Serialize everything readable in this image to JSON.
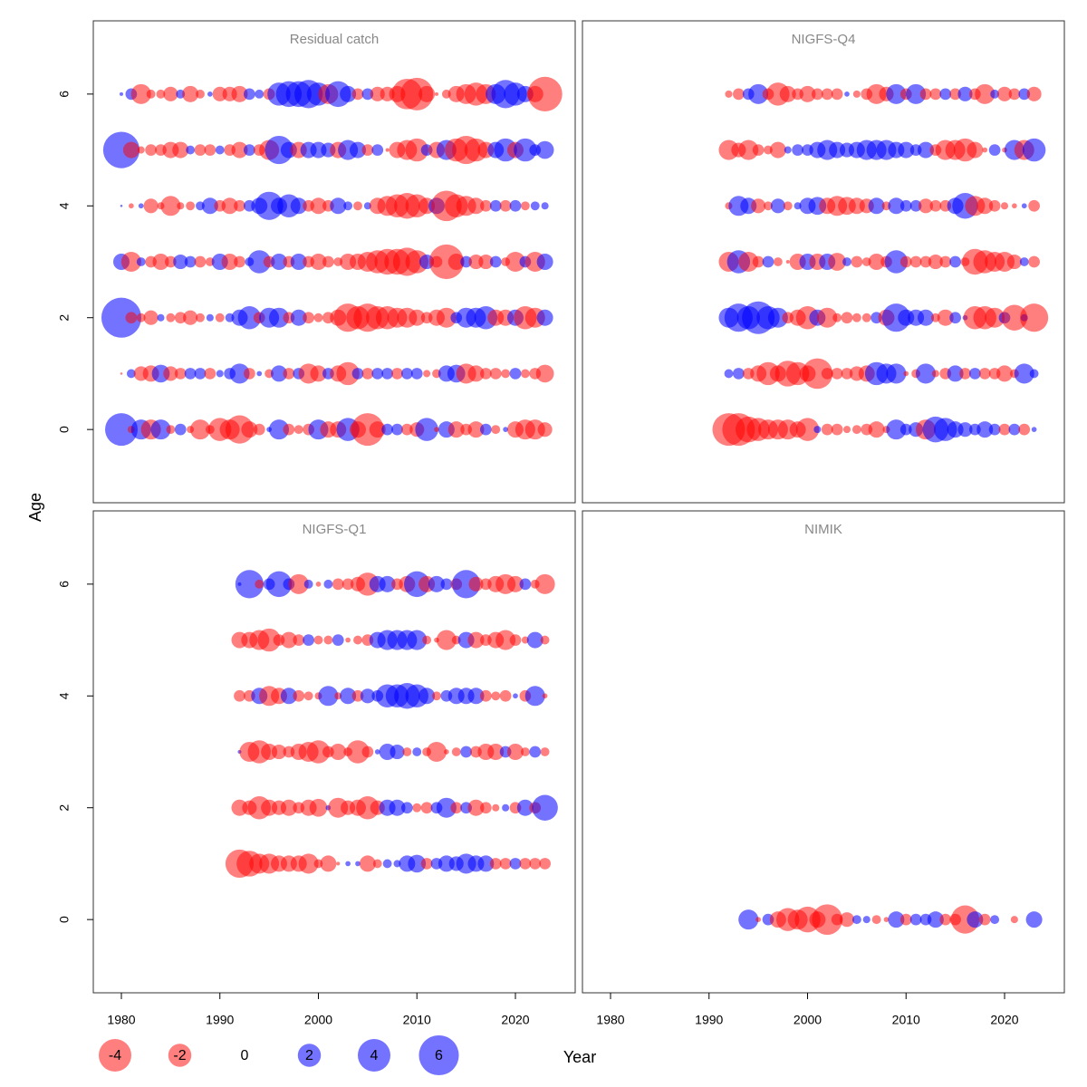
{
  "chart_data": {
    "type": "bubble",
    "xlabel": "Year",
    "ylabel": "Age",
    "xlim": [
      1977.15,
      2026.07
    ],
    "ylim": [
      -1.31,
      7.31
    ],
    "xticks": [
      1980,
      1990,
      2000,
      2010,
      2020
    ],
    "yticks": [
      0,
      2,
      4,
      6
    ],
    "positive_color": "rgba(0,0,255,0.55)",
    "negative_color": "rgba(255,0,0,0.5)",
    "size_legend": [
      -4,
      -2,
      0,
      2,
      4,
      6
    ],
    "panels": [
      {
        "title": "Residual catch",
        "years": [
          1980,
          1981,
          1982,
          1983,
          1984,
          1985,
          1986,
          1987,
          1988,
          1989,
          1990,
          1991,
          1992,
          1993,
          1994,
          1995,
          1996,
          1997,
          1998,
          1999,
          2000,
          2001,
          2002,
          2003,
          2004,
          2005,
          2006,
          2007,
          2008,
          2009,
          2010,
          2011,
          2012,
          2013,
          2014,
          2015,
          2016,
          2017,
          2018,
          2019,
          2020,
          2021,
          2022,
          2023
        ],
        "ages": [
          0,
          1,
          2,
          3,
          4,
          5,
          6
        ],
        "residuals": [
          [
            4,
            -0.2,
            1.5,
            -1.5,
            1.5,
            -0.3,
            0.5,
            -0.2,
            -1.5,
            -0.3,
            -2,
            -1.5,
            -3,
            -1,
            -0.5,
            0.1,
            1.5,
            -0.5,
            -0.3,
            -0.5,
            1.5,
            -1,
            -1,
            2,
            -1,
            -4,
            -1,
            0.5,
            0.5,
            -0.5,
            -0.8,
            2,
            -0.1,
            1,
            -1,
            -0.5,
            -1,
            0.5,
            -0.3,
            0.1,
            -1,
            -1.5,
            -1.5,
            -0.8
          ],
          [
            -0.02,
            0.3,
            -0.8,
            -1,
            1.2,
            -0.8,
            -0.5,
            0.5,
            0.5,
            -0.5,
            0.2,
            0.5,
            1.5,
            -0.5,
            0.1,
            -0.3,
            1,
            -0.5,
            0.5,
            -1.5,
            -1,
            0.5,
            -1,
            -2,
            0.5,
            -0.5,
            0.5,
            0.5,
            -0.5,
            0.5,
            0.5,
            -0.2,
            -0.3,
            1,
            1.2,
            -1.5,
            -1,
            -0.5,
            -0.5,
            -0.3,
            0.5,
            -0.3,
            -0.5,
            -1.2
          ],
          [
            6,
            -0.5,
            -0.3,
            -0.8,
            0.2,
            -0.3,
            -0.5,
            -0.8,
            -0.3,
            0.2,
            -0.3,
            0.3,
            1,
            2,
            -0.5,
            1.5,
            1.5,
            -0.5,
            1,
            -0.5,
            -0.3,
            -0.5,
            -1,
            -3,
            -2,
            -3,
            -2,
            -2,
            -1.5,
            -1.5,
            -1,
            -0.5,
            -1,
            -1.5,
            0.5,
            1.5,
            1.5,
            2,
            -1,
            -1,
            1,
            -2,
            -1.5,
            1
          ],
          [
            1,
            -1.5,
            0.3,
            -0.5,
            -1,
            -0.5,
            0.8,
            0.5,
            -0.5,
            -0.3,
            1,
            -1,
            -0.5,
            0.3,
            2,
            -0.5,
            1,
            -0.5,
            1,
            -0.5,
            -1,
            -0.5,
            -0.3,
            -1,
            -1,
            -1.5,
            -2,
            -2.5,
            -2.5,
            -3,
            -2,
            0.8,
            -0.5,
            -4.5,
            -1,
            0.5,
            -0.8,
            -0.8,
            0.5,
            -0.3,
            -1.5,
            0.5,
            -1.5,
            1
          ],
          [
            0.02,
            -0.1,
            0.1,
            -0.8,
            -0.2,
            -1.5,
            -0.2,
            -0.3,
            0.3,
            1,
            -0.5,
            -1,
            -0.5,
            0.5,
            1,
            3,
            1,
            2,
            1,
            -0.5,
            -1,
            -0.5,
            1,
            0.3,
            -0.3,
            0.2,
            -1,
            -1.5,
            -2,
            -2.5,
            -2,
            -1,
            1,
            -3.5,
            -2,
            -1.5,
            -1,
            -0.5,
            0.5,
            -0.5,
            0.5,
            -0.3,
            0.3,
            0.2
          ],
          [
            5,
            -1,
            -0.2,
            -0.5,
            -0.5,
            -1,
            -1,
            0.3,
            -0.5,
            -0.5,
            0.3,
            -0.5,
            -1,
            0.5,
            -0.5,
            -1.5,
            3,
            1,
            -1,
            1,
            1,
            0.8,
            -1,
            1.5,
            1,
            -0.5,
            0.5,
            -0.05,
            -1,
            -1.5,
            -2,
            0.5,
            -1,
            1.5,
            -2,
            -3,
            -2,
            -1,
            1,
            2,
            -1,
            2,
            0.5,
            1.2
          ],
          [
            0.05,
            0.5,
            -1.5,
            -0.3,
            -0.3,
            -0.8,
            0.3,
            -1,
            -0.3,
            0.1,
            -0.8,
            -0.8,
            -1,
            0.5,
            0.3,
            -0.5,
            2,
            2.5,
            2.5,
            3,
            2,
            -1.5,
            2.5,
            1,
            -0.5,
            0.5,
            -0.8,
            -0.8,
            -1,
            -3.5,
            -4,
            -1,
            -0.05,
            -0.3,
            -1,
            -1.5,
            -2,
            -1.5,
            1.5,
            3,
            2,
            1,
            -1,
            -4.5
          ]
        ]
      },
      {
        "title": "NIGFS-Q4",
        "years": [
          1992,
          1993,
          1994,
          1995,
          1996,
          1997,
          1998,
          1999,
          2000,
          2001,
          2002,
          2003,
          2004,
          2005,
          2006,
          2007,
          2008,
          2009,
          2010,
          2011,
          2012,
          2013,
          2014,
          2015,
          2016,
          2017,
          2018,
          2019,
          2020,
          2021,
          2022,
          2023
        ],
        "ages": [
          0,
          1,
          2,
          3,
          4,
          5,
          6
        ],
        "residuals": [
          [
            -4,
            -4,
            -2.5,
            -2,
            -1.5,
            -1.5,
            -1.5,
            -1,
            -2,
            0.2,
            -0.5,
            -0.5,
            -0.2,
            -0.3,
            -0.5,
            -1,
            -0.2,
            1.5,
            0.5,
            0.8,
            -1.5,
            2.5,
            2,
            1,
            0.8,
            0.5,
            1,
            0.5,
            -0.5,
            0.5,
            -0.5,
            0.1
          ],
          [
            0.3,
            0.5,
            -0.5,
            -1,
            -2,
            -1,
            -2.5,
            -2,
            -1,
            -3.5,
            -0.5,
            -0.5,
            -0.5,
            -0.8,
            -1,
            2,
            1.5,
            1.5,
            -0.1,
            -0.3,
            1.5,
            -0.2,
            -0.5,
            1,
            -0.5,
            0.5,
            -0.5,
            -0.5,
            -1,
            -0.3,
            1.5,
            0.3
          ],
          [
            1.5,
            3,
            2,
            4,
            2,
            1.5,
            -0.5,
            -1,
            -2,
            1,
            -1.5,
            -0.3,
            -0.5,
            -0.3,
            -0.3,
            0.5,
            -1,
            3,
            1,
            1,
            1,
            -0.3,
            -1,
            0.5,
            0.1,
            -2,
            -2,
            -1.5,
            0.5,
            -2.5,
            0.2,
            -3
          ],
          [
            -1.5,
            2,
            -1.5,
            -0.5,
            0.5,
            -0.3,
            -0.05,
            -1,
            1,
            -1,
            1,
            -1.2,
            0.3,
            -0.5,
            -0.3,
            -1,
            -0.5,
            2,
            -0.5,
            -0.5,
            -0.5,
            -0.8,
            -0.5,
            0.5,
            -0.3,
            -2.5,
            -2,
            -1.5,
            -1.5,
            -0.8,
            0.3,
            -0.5
          ],
          [
            -0.2,
            1.5,
            1,
            -0.8,
            -0.3,
            0.8,
            -0.3,
            0.2,
            1,
            1.2,
            -1,
            -1.5,
            -1.2,
            -1,
            -0.8,
            1,
            -0.3,
            1,
            0.5,
            0.5,
            -0.8,
            -0.5,
            -0.5,
            1,
            2.5,
            -1.5,
            -1,
            -0.5,
            -0.2,
            -0.1,
            0.1,
            -0.5
          ],
          [
            -1.5,
            -0.8,
            -1.5,
            -0.5,
            -0.3,
            -1,
            0.2,
            0.5,
            0.5,
            1,
            1.5,
            1,
            0.8,
            1,
            1.5,
            1.5,
            1.5,
            1,
            1,
            0.5,
            1,
            -0.5,
            -1.5,
            -1.5,
            -2,
            -1,
            -0.1,
            0.5,
            -0.1,
            1.5,
            -1.5,
            2
          ],
          [
            -0.2,
            -0.5,
            0.5,
            1.5,
            -0.5,
            -2,
            -1,
            -0.5,
            -1,
            -0.5,
            -0.5,
            -0.5,
            0.1,
            -0.2,
            -0.5,
            -1.5,
            -0.8,
            1.5,
            -0.5,
            1.5,
            -0.5,
            -0.5,
            0.5,
            -0.5,
            0.8,
            -0.5,
            -1.5,
            0.3,
            -0.8,
            -0.5,
            0.5,
            -0.8
          ]
        ]
      },
      {
        "title": "NIGFS-Q1",
        "years": [
          1992,
          1993,
          1994,
          1995,
          1996,
          1997,
          1998,
          1999,
          2000,
          2001,
          2002,
          2003,
          2004,
          2005,
          2006,
          2007,
          2008,
          2009,
          2010,
          2011,
          2012,
          2013,
          2014,
          2015,
          2016,
          2017,
          2018,
          2019,
          2020,
          2021,
          2022,
          2023
        ],
        "ages": [
          1,
          2,
          3,
          4,
          5,
          6
        ],
        "residuals": [
          [
            -3,
            -2.5,
            -1.5,
            -1.5,
            -1,
            -1,
            -1,
            -1.5,
            -0.3,
            -1,
            -0.05,
            0.1,
            0.1,
            -1,
            -0.3,
            0.3,
            0.2,
            1,
            1.2,
            -0.5,
            0.5,
            1,
            0.8,
            1.5,
            1,
            1,
            -0.5,
            -0.5,
            0.5,
            -0.5,
            -0.5,
            -0.5
          ],
          [
            -1,
            -0.8,
            -2,
            -1,
            -0.8,
            -1,
            -0.5,
            -1,
            -1.2,
            0.1,
            -1.5,
            -0.8,
            -1,
            -2,
            -0.8,
            1,
            1,
            0.5,
            -0.3,
            -0.5,
            0.5,
            1.5,
            -0.5,
            0.5,
            -1,
            -0.5,
            -0.2,
            0.2,
            -0.5,
            1,
            -0.5,
            2.5
          ],
          [
            0.05,
            -1.5,
            -2,
            -1,
            -0.8,
            -0.5,
            -1,
            -1.5,
            -2,
            -0.5,
            -1,
            -0.3,
            -2,
            -0.5,
            0.1,
            1,
            0.8,
            -0.3,
            0.3,
            -0.3,
            -1.5,
            -0.1,
            -0.3,
            0.5,
            -0.5,
            -1,
            -1,
            0.5,
            -1,
            -0.3,
            0.5,
            -0.3
          ],
          [
            -0.5,
            -0.5,
            1,
            -1.5,
            -1,
            1,
            -0.5,
            -0.3,
            -0.2,
            1.5,
            -0.2,
            1,
            -0.5,
            0.8,
            0.5,
            2,
            2,
            2.5,
            2,
            1,
            -0.3,
            0.5,
            1,
            1,
            1,
            -0.5,
            -0.3,
            -0.5,
            0.1,
            -0.5,
            1.5,
            -0.1
          ],
          [
            -1,
            -1,
            -1.5,
            -2,
            -0.5,
            -1,
            -0.5,
            0.5,
            -0.3,
            -0.3,
            0.5,
            -0.1,
            -0.3,
            -0.5,
            1,
            1.5,
            1.5,
            1.5,
            1.5,
            -0.3,
            -0.1,
            -1.5,
            -0.3,
            1,
            -1,
            -0.5,
            -1,
            -1.5,
            -0.5,
            -0.2,
            1,
            -0.3
          ],
          [
            0.05,
            3,
            -0.3,
            0.5,
            2.5,
            0.5,
            -1.5,
            0.3,
            -0.1,
            0.3,
            -0.5,
            -0.5,
            -0.8,
            -2,
            1,
            1,
            -0.5,
            -1,
            2.5,
            -1,
            1,
            0.5,
            -0.5,
            3,
            -0.8,
            -0.5,
            -1,
            -1.5,
            -1,
            0.5,
            -0.3,
            -1.5
          ]
        ]
      },
      {
        "title": "NIMIK",
        "years": [
          1994,
          1995,
          1996,
          1997,
          1998,
          1999,
          2000,
          2001,
          2002,
          2003,
          2004,
          2005,
          2006,
          2007,
          2008,
          2009,
          2010,
          2011,
          2012,
          2013,
          2014,
          2015,
          2016,
          2017,
          2018,
          2019,
          2020,
          2021,
          2022,
          2023
        ],
        "ages": [
          0
        ],
        "residuals": [
          [
            1.5,
            -0.1,
            0.5,
            -1,
            -2,
            -1.5,
            -2.5,
            -1,
            -3.5,
            -0.5,
            -0.8,
            0.3,
            0.2,
            -0.3,
            -0.1,
            1,
            -0.5,
            0.5,
            0.5,
            1,
            -0.5,
            -0.5,
            -3,
            1,
            -0.5,
            0.3,
            null,
            -0.2,
            null,
            1
          ]
        ]
      }
    ]
  }
}
